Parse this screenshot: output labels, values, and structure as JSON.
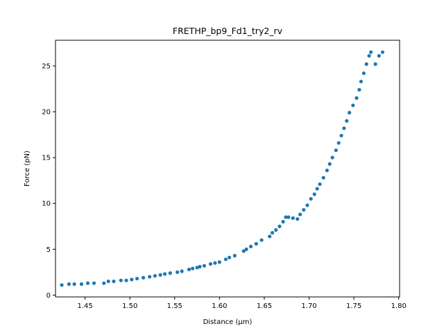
{
  "chart_data": {
    "type": "scatter",
    "title": "FRETHP_bp9_Fd1_try2_rv",
    "xlabel": "Distance (μm)",
    "ylabel": "Force (pN)",
    "xlim": [
      1.417,
      1.801
    ],
    "ylim": [
      -0.2,
      27.8
    ],
    "xticks": [
      1.45,
      1.5,
      1.55,
      1.6,
      1.65,
      1.7,
      1.75,
      1.8
    ],
    "xtick_labels": [
      "1.45",
      "1.50",
      "1.55",
      "1.60",
      "1.65",
      "1.70",
      "1.75",
      "1.80"
    ],
    "yticks": [
      0,
      5,
      10,
      15,
      20,
      25
    ],
    "ytick_labels": [
      "0",
      "5",
      "10",
      "15",
      "20",
      "25"
    ],
    "grid": false,
    "point_color": "#1f77b4",
    "series": [
      {
        "x": [
          1.424,
          1.432,
          1.438,
          1.446,
          1.453,
          1.46,
          1.471,
          1.476,
          1.482,
          1.49,
          1.496,
          1.502,
          1.508,
          1.515,
          1.522,
          1.528,
          1.534,
          1.539,
          1.545,
          1.553,
          1.558,
          1.566,
          1.57,
          1.575,
          1.578,
          1.583,
          1.59,
          1.595,
          1.6,
          1.607,
          1.611,
          1.617,
          1.627,
          1.63,
          1.635,
          1.641,
          1.647,
          1.656,
          1.659,
          1.663,
          1.667,
          1.671,
          1.674,
          1.677,
          1.682,
          1.687,
          1.69,
          1.694,
          1.698,
          1.702,
          1.706,
          1.709,
          1.712,
          1.716,
          1.72,
          1.723,
          1.726,
          1.73,
          1.733,
          1.736,
          1.739,
          1.742,
          1.745,
          1.749,
          1.753,
          1.756,
          1.758,
          1.761,
          1.764,
          1.767,
          1.769,
          1.774,
          1.778,
          1.782
        ],
        "y": [
          1.1,
          1.2,
          1.2,
          1.2,
          1.3,
          1.3,
          1.3,
          1.5,
          1.5,
          1.6,
          1.6,
          1.7,
          1.8,
          1.9,
          2.0,
          2.1,
          2.2,
          2.3,
          2.4,
          2.5,
          2.6,
          2.8,
          2.9,
          3.0,
          3.1,
          3.2,
          3.4,
          3.5,
          3.6,
          3.9,
          4.1,
          4.3,
          4.8,
          5.0,
          5.3,
          5.6,
          6.0,
          6.4,
          6.8,
          7.1,
          7.5,
          8.0,
          8.5,
          8.5,
          8.4,
          8.3,
          8.8,
          9.3,
          9.8,
          10.5,
          11.0,
          11.6,
          12.1,
          12.8,
          13.6,
          14.3,
          15.0,
          15.8,
          16.6,
          17.4,
          18.2,
          19.0,
          19.9,
          20.7,
          21.5,
          22.4,
          23.3,
          24.2,
          25.2,
          26.1,
          26.5,
          25.2,
          26.1,
          26.5
        ]
      }
    ]
  }
}
